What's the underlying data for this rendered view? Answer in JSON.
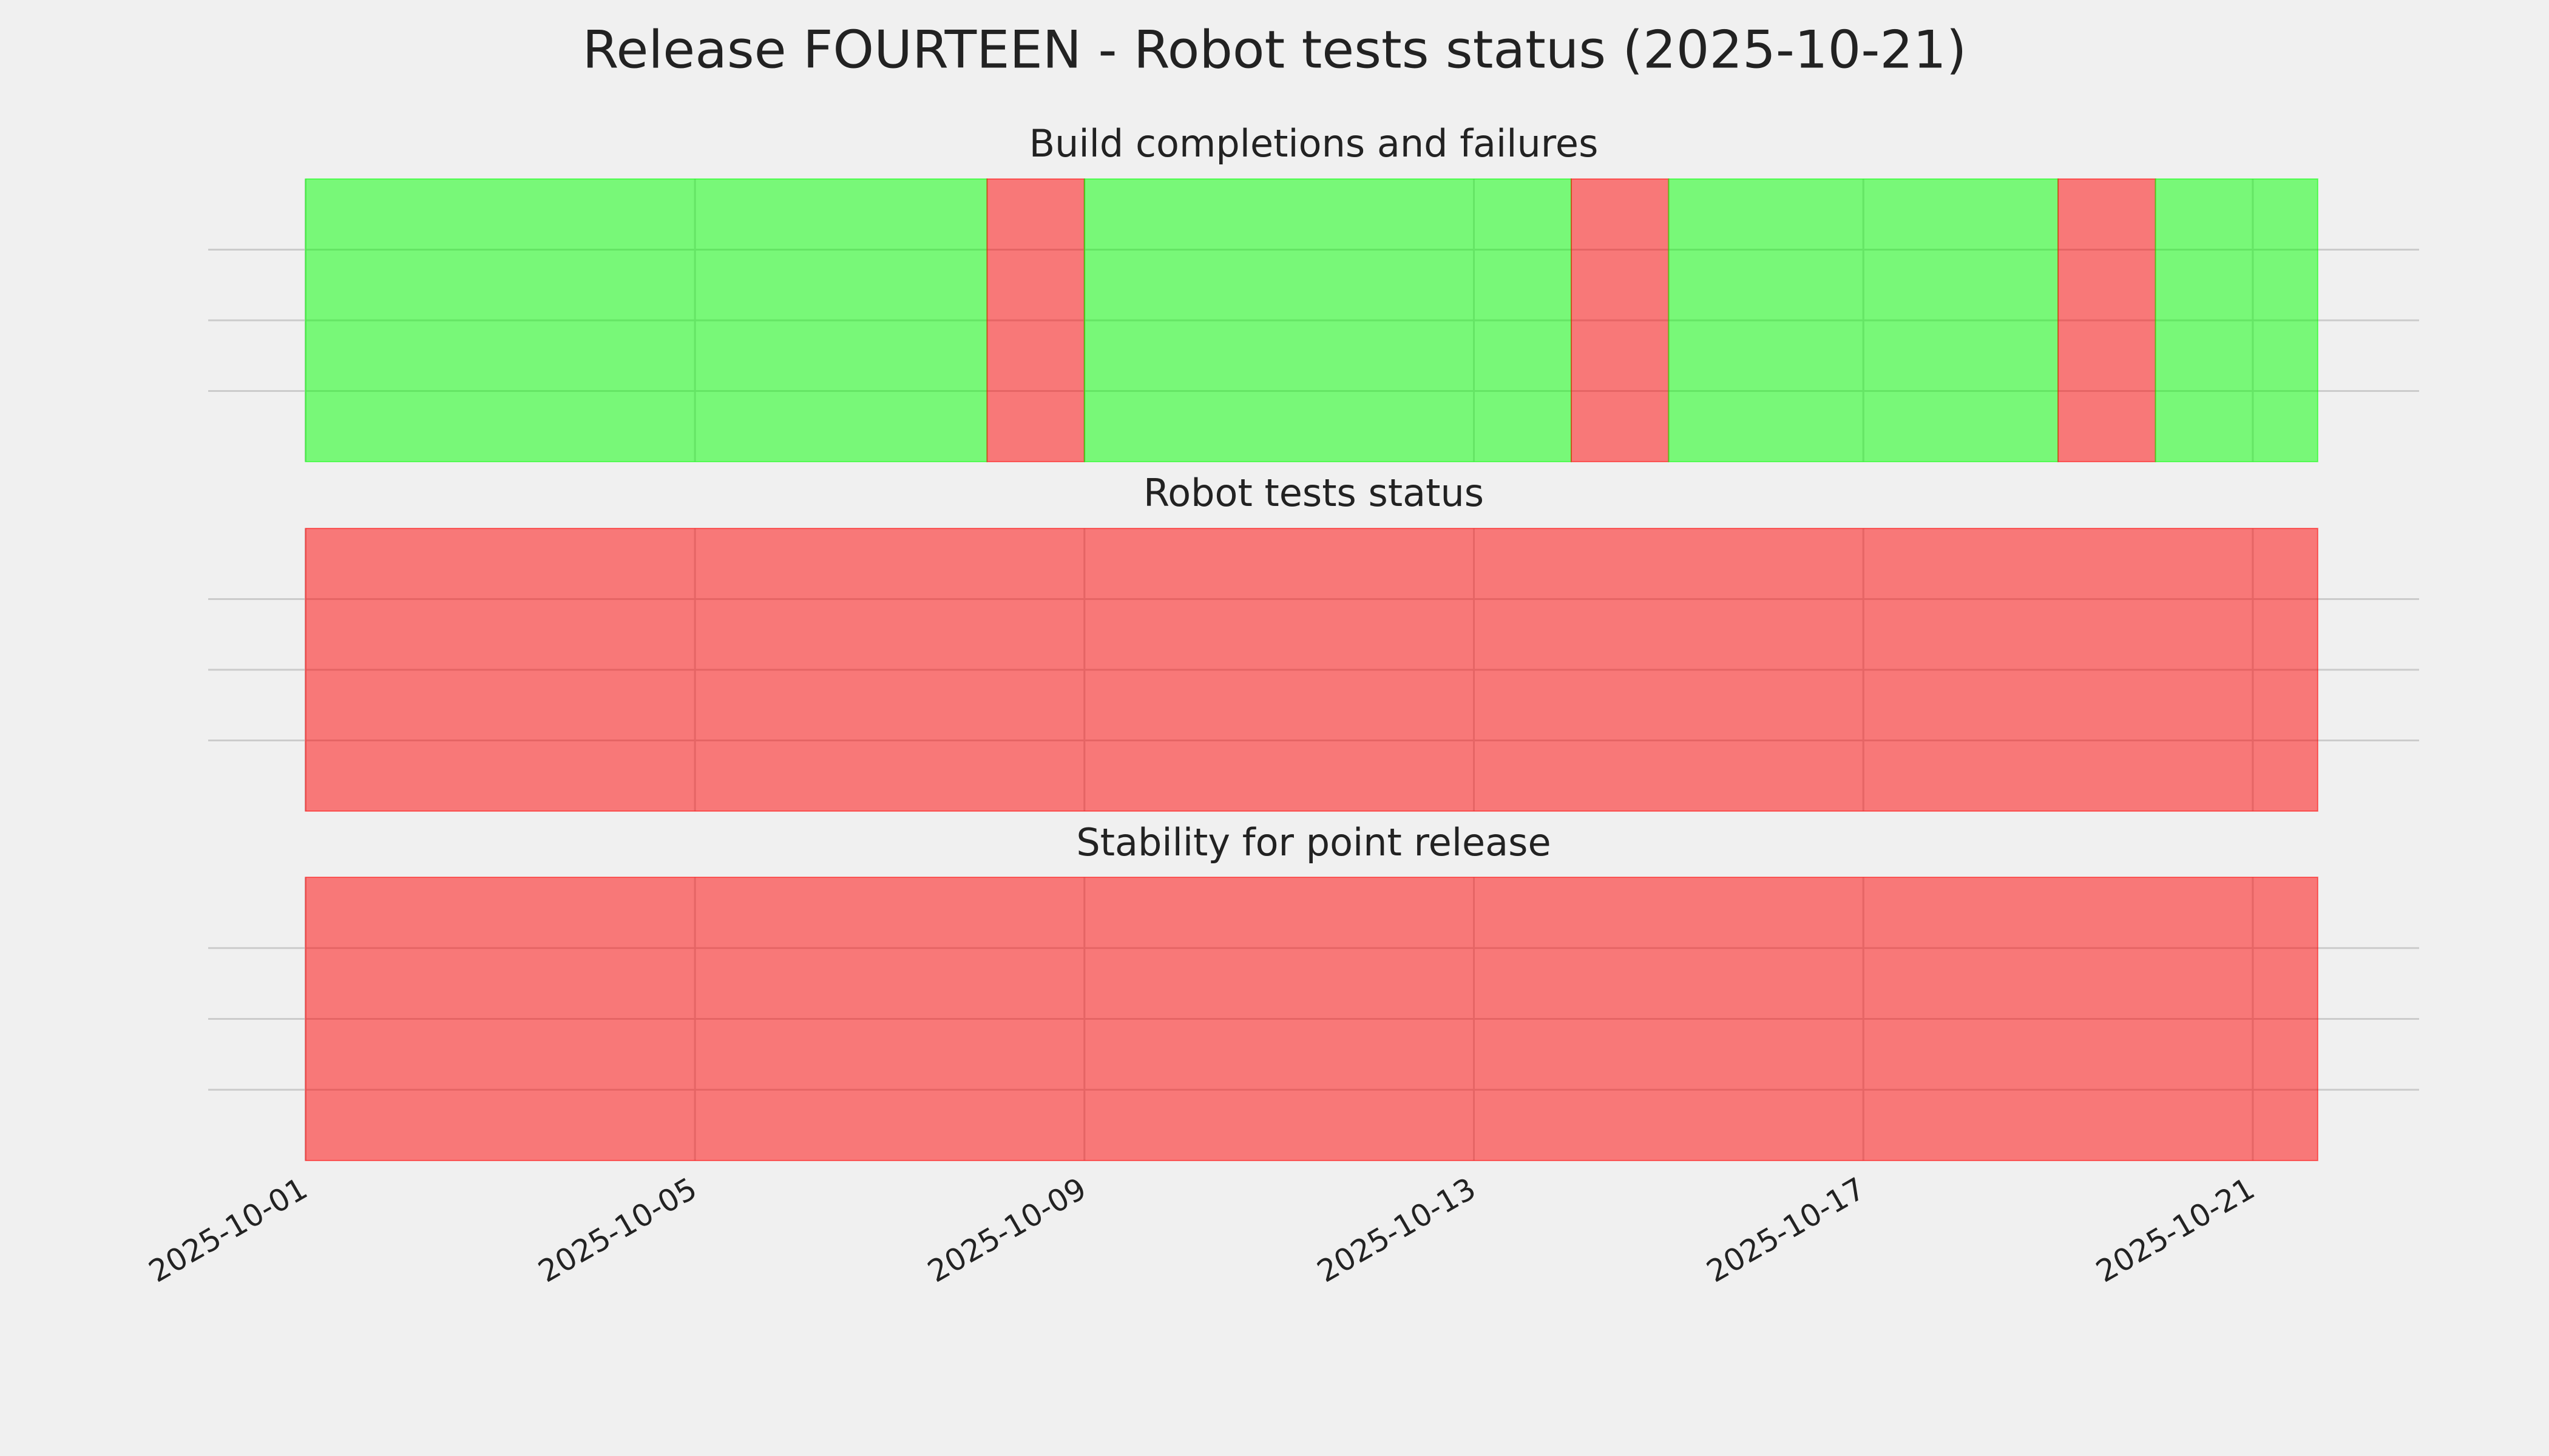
{
  "title": "Release FOURTEEN - Robot tests status (2025-10-21)",
  "chart_data": [
    {
      "type": "timeline",
      "title": "Build completions and failures",
      "spans": [
        {
          "start": "2025-10-01",
          "end": "2025-10-08",
          "color": "#00ff00"
        },
        {
          "start": "2025-10-08",
          "end": "2025-10-09",
          "color": "#ff0000"
        },
        {
          "start": "2025-10-09",
          "end": "2025-10-14",
          "color": "#00ff00"
        },
        {
          "start": "2025-10-14",
          "end": "2025-10-15",
          "color": "#ff0000"
        },
        {
          "start": "2025-10-15",
          "end": "2025-10-19",
          "color": "#00ff00"
        },
        {
          "start": "2025-10-19",
          "end": "2025-10-20",
          "color": "#ff0000"
        },
        {
          "start": "2025-10-20",
          "end": "2025-10-21T16:00",
          "color": "#00ff00"
        }
      ],
      "alpha": 0.5,
      "xlim": [
        "2025-09-30T00:00",
        "2025-10-22T17:00"
      ],
      "xticks": [
        "2025-10-01",
        "2025-10-05",
        "2025-10-09",
        "2025-10-13",
        "2025-10-17",
        "2025-10-21"
      ],
      "ylim": [
        0,
        1
      ],
      "yticks": [
        0.25,
        0.5,
        0.75
      ],
      "grid": true,
      "show_xtick_labels": false
    },
    {
      "type": "timeline",
      "title": "Robot tests status",
      "spans": [
        {
          "start": "2025-10-01",
          "end": "2025-10-21T16:00",
          "color": "#ff0000"
        }
      ],
      "alpha": 0.5,
      "xlim": [
        "2025-09-30T00:00",
        "2025-10-22T17:00"
      ],
      "xticks": [
        "2025-10-01",
        "2025-10-05",
        "2025-10-09",
        "2025-10-13",
        "2025-10-17",
        "2025-10-21"
      ],
      "ylim": [
        0,
        1
      ],
      "yticks": [
        0.25,
        0.5,
        0.75
      ],
      "grid": true,
      "show_xtick_labels": false
    },
    {
      "type": "timeline",
      "title": "Stability for point release",
      "spans": [
        {
          "start": "2025-10-01",
          "end": "2025-10-21T16:00",
          "color": "#ff0000"
        }
      ],
      "alpha": 0.5,
      "xlim": [
        "2025-09-30T00:00",
        "2025-10-22T17:00"
      ],
      "xticks": [
        "2025-10-01",
        "2025-10-05",
        "2025-10-09",
        "2025-10-13",
        "2025-10-17",
        "2025-10-21"
      ],
      "ylim": [
        0,
        1
      ],
      "yticks": [
        0.25,
        0.5,
        0.75
      ],
      "grid": true,
      "show_xtick_labels": true
    }
  ]
}
